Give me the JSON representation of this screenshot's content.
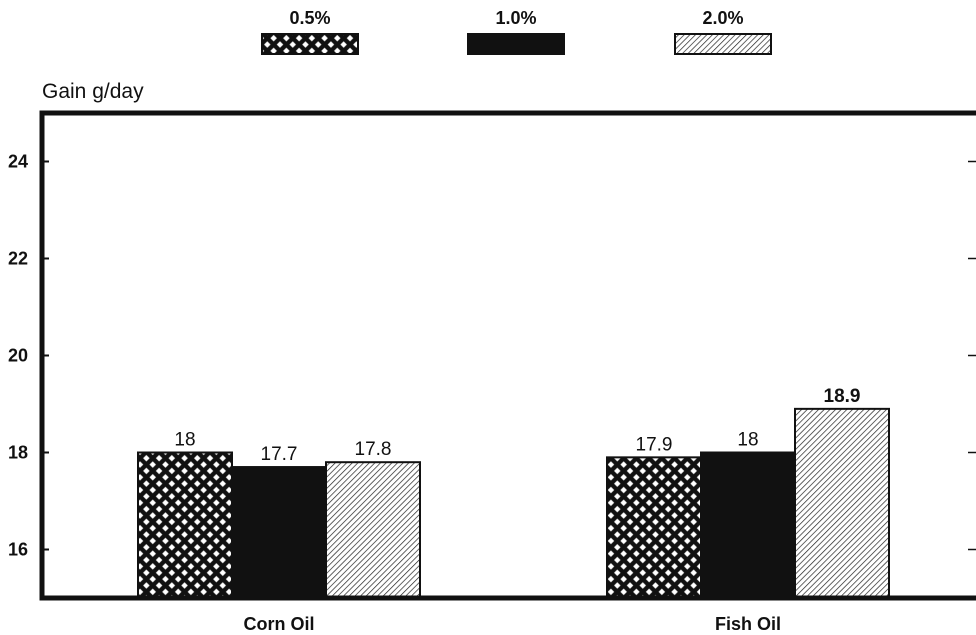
{
  "chart_data": {
    "type": "bar",
    "ylabel": "Gain g/day",
    "xlabel": "",
    "categories": [
      "Corn Oil",
      "Fish Oil"
    ],
    "series": [
      {
        "name": "0.5%",
        "values": [
          18,
          17.9
        ],
        "data_labels": [
          "18",
          "17.9"
        ],
        "pattern": "crosshatch"
      },
      {
        "name": "1.0%",
        "values": [
          17.7,
          18
        ],
        "data_labels": [
          "17.7",
          "18"
        ],
        "pattern": "solid"
      },
      {
        "name": "2.0%",
        "values": [
          17.8,
          18.9
        ],
        "data_labels": [
          "17.8",
          "18.9"
        ],
        "pattern": "diagonal"
      }
    ],
    "y_ticks": [
      16,
      18,
      20,
      22,
      24
    ],
    "y_tick_labels": [
      "16",
      "18",
      "20",
      "22",
      "24"
    ],
    "ylim": [
      15,
      25
    ],
    "grid": false,
    "legend_position": "top-center",
    "colors": {
      "ink": "#111111",
      "background": "#ffffff"
    }
  }
}
